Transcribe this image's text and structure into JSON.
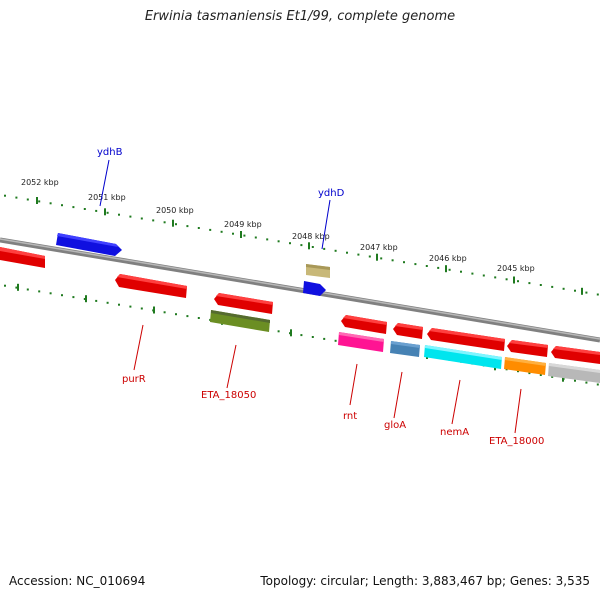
{
  "title": "Erwinia tasmaniensis Et1/99, complete genome",
  "footer": {
    "accession": "Accession: NC_010694",
    "summary": "Topology: circular; Length: 3,883,467 bp; Genes: 3,535"
  },
  "colors": {
    "tick": "#1f7a1f",
    "backbone": "#808080",
    "label_top": "#0000cc",
    "label_bottom": "#cc0000"
  },
  "ticks": [
    "2052 kbp",
    "2051 kbp",
    "2050 kbp",
    "2049 kbp",
    "2048 kbp",
    "2047 kbp",
    "2046 kbp",
    "2045 kbp"
  ],
  "gene_labels_top": [
    "ydhB",
    "ydhD"
  ],
  "gene_labels_bottom": [
    "purR",
    "ETA_18050",
    "rnt",
    "gloA",
    "nemA",
    "ETA_18000"
  ]
}
